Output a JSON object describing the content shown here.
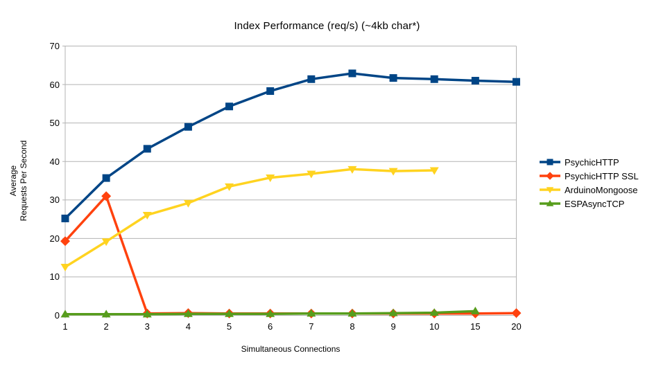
{
  "title": "Index Performance (req/s) (~4kb char*)",
  "axes": {
    "x_label": "Simultaneous Connections",
    "y_label_line1": "Average",
    "y_label_line2": "Requests Per Second"
  },
  "colors": {
    "background": "#ffffff",
    "gridline": "#b3b3b3",
    "axis_line": "#b3b3b3",
    "text": "#000000"
  },
  "legend": {
    "items": [
      "PsychicHTTP",
      "PsychicHTTP SSL",
      "ArduinoMongoose",
      "ESPAsyncTCP"
    ]
  },
  "chart_data": {
    "type": "line",
    "title": "Index Performance (req/s) (~4kb char*)",
    "xlabel": "Simultaneous Connections",
    "ylabel": "Average Requests Per Second",
    "categories": [
      "1",
      "2",
      "3",
      "4",
      "5",
      "6",
      "7",
      "8",
      "9",
      "10",
      "15",
      "20"
    ],
    "ylim": [
      0,
      70
    ],
    "y_ticks": [
      0,
      10,
      20,
      30,
      40,
      50,
      60,
      70
    ],
    "grid": "horizontal",
    "legend_position": "right",
    "series": [
      {
        "name": "PsychicHTTP",
        "color": "#004586",
        "marker": "square",
        "values": [
          25.2,
          35.7,
          43.3,
          49.0,
          54.3,
          58.3,
          61.4,
          62.9,
          61.7,
          61.4,
          61.0,
          60.7
        ]
      },
      {
        "name": "PsychicHTTP SSL",
        "color": "#FF420E",
        "marker": "diamond",
        "values": [
          19.3,
          31.0,
          0.5,
          0.6,
          0.5,
          0.5,
          0.5,
          0.5,
          0.5,
          0.5,
          0.5,
          0.6
        ]
      },
      {
        "name": "ArduinoMongoose",
        "color": "#FFD320",
        "marker": "triangle-down",
        "values": [
          12.6,
          19.2,
          26.1,
          29.2,
          33.5,
          35.8,
          36.8,
          38.0,
          37.5,
          37.7,
          null,
          null
        ]
      },
      {
        "name": "ESPAsyncTCP",
        "color": "#579D1C",
        "marker": "triangle-up",
        "values": [
          0.3,
          0.3,
          0.3,
          0.4,
          0.4,
          0.4,
          0.5,
          0.5,
          0.6,
          0.7,
          1.1,
          null
        ]
      }
    ]
  }
}
